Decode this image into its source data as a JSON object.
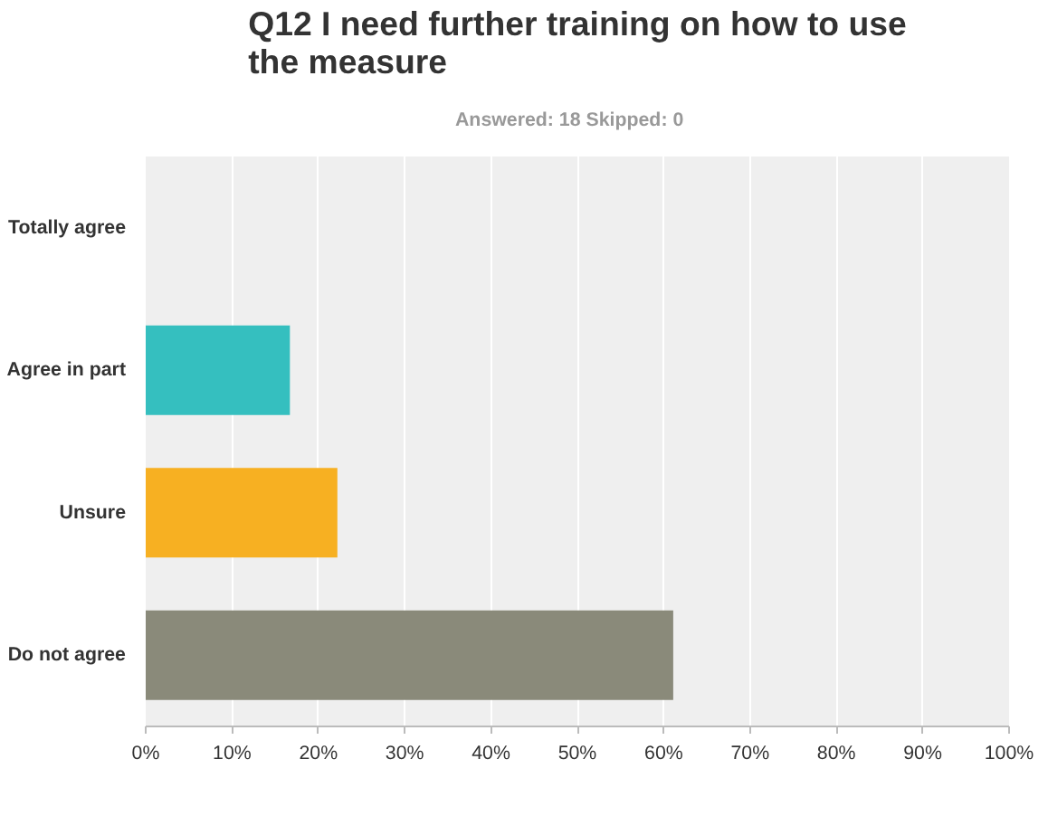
{
  "chart_data": {
    "type": "bar",
    "orientation": "horizontal",
    "title": "Q12 I need further training on how to use the measure",
    "subtitle": "Answered: 18    Skipped: 0",
    "categories": [
      "Totally agree",
      "Agree in part",
      "Unsure",
      "Do not agree"
    ],
    "values": [
      0,
      16.7,
      22.2,
      61.1
    ],
    "colors": [
      "#3b9ad6",
      "#35bfbf",
      "#f7b022",
      "#8a8a7a"
    ],
    "xlim": [
      0,
      100
    ],
    "xticks": [
      {
        "value": 0,
        "label": "0%"
      },
      {
        "value": 10,
        "label": "10%"
      },
      {
        "value": 20,
        "label": "20%"
      },
      {
        "value": 30,
        "label": "30%"
      },
      {
        "value": 40,
        "label": "40%"
      },
      {
        "value": 50,
        "label": "50%"
      },
      {
        "value": 60,
        "label": "60%"
      },
      {
        "value": 70,
        "label": "70%"
      },
      {
        "value": 80,
        "label": "80%"
      },
      {
        "value": 90,
        "label": "90%"
      },
      {
        "value": 100,
        "label": "100%"
      }
    ],
    "grid": "x"
  }
}
